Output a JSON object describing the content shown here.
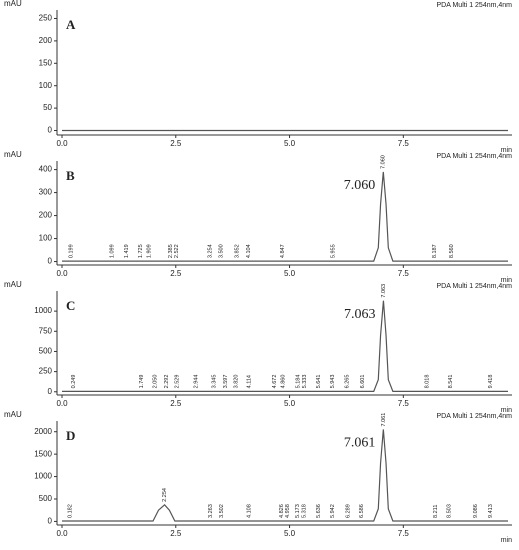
{
  "chart_data": [
    {
      "type": "line",
      "panel": "A",
      "y_label": "mAU",
      "x_label": "min",
      "detector": "PDA Multi 1 254nm,4nm",
      "xlim": [
        0,
        9.8
      ],
      "ylim": [
        -10,
        260
      ],
      "xticks": [
        {
          "value": 0,
          "label": "0.0"
        },
        {
          "value": 2.5,
          "label": "2.5"
        },
        {
          "value": 5,
          "label": "5.0"
        },
        {
          "value": 7.5,
          "label": "7.5"
        }
      ],
      "yticks": [
        0,
        50,
        100,
        150,
        200,
        250
      ],
      "color": "#555555",
      "x": [
        0,
        9.8
      ],
      "values": [
        0,
        0
      ]
    },
    {
      "type": "line",
      "panel": "B",
      "y_label": "mAU",
      "x_label": "min",
      "detector": "PDA Multi 1 254nm,4nm",
      "callout": "7.060",
      "xlim": [
        0,
        9.8
      ],
      "ylim": [
        -15,
        420
      ],
      "xticks": [
        {
          "value": 0,
          "label": "0.0"
        },
        {
          "value": 2.5,
          "label": "2.5"
        },
        {
          "value": 5,
          "label": "5.0"
        },
        {
          "value": 7.5,
          "label": "7.5"
        }
      ],
      "yticks": [
        0,
        100,
        200,
        300,
        400
      ],
      "color": "#555555",
      "x": [
        0,
        6.85,
        6.95,
        7.0,
        7.06,
        7.12,
        7.17,
        7.27,
        9.8
      ],
      "values": [
        2,
        2,
        60,
        250,
        390,
        250,
        60,
        2,
        2
      ],
      "peaks": {
        "x": [
          0.199,
          1.099,
          1.419,
          1.725,
          1.909,
          2.385,
          2.522,
          3.254,
          3.5,
          3.852,
          4.104,
          4.847,
          5.955,
          7.06,
          8.187,
          8.56
        ],
        "labels": [
          "0.199",
          "1.099",
          "1.419",
          "1.725",
          "1.909",
          "2.385",
          "2.522",
          "3.254",
          "3.500",
          "3.852",
          "4.104",
          "4.847",
          "5.955",
          "7.060",
          "8.187",
          "8.560"
        ]
      }
    },
    {
      "type": "line",
      "panel": "C",
      "y_label": "mAU",
      "x_label": "min",
      "detector": "PDA Multi 1 254nm,4nm",
      "callout": "7.063",
      "xlim": [
        0,
        9.8
      ],
      "ylim": [
        -40,
        1200
      ],
      "xticks": [
        {
          "value": 0,
          "label": "0.0"
        },
        {
          "value": 2.5,
          "label": "2.5"
        },
        {
          "value": 5,
          "label": "5.0"
        },
        {
          "value": 7.5,
          "label": "7.5"
        }
      ],
      "yticks": [
        0,
        250,
        500,
        750,
        1000
      ],
      "color": "#555555",
      "x": [
        0,
        6.85,
        6.95,
        7.0,
        7.063,
        7.12,
        7.17,
        7.27,
        9.8
      ],
      "values": [
        5,
        5,
        150,
        700,
        1130,
        700,
        150,
        5,
        5
      ],
      "peaks": {
        "x": [
          0.249,
          1.749,
          2.05,
          2.292,
          2.529,
          2.944,
          3.345,
          3.597,
          3.82,
          4.114,
          4.672,
          4.86,
          5.184,
          5.333,
          5.641,
          5.943,
          6.265,
          6.601,
          7.063,
          8.018,
          8.541,
          9.418
        ],
        "labels": [
          "0.249",
          "1.749",
          "2.050",
          "2.292",
          "2.529",
          "2.944",
          "3.345",
          "3.597",
          "3.820",
          "4.114",
          "4.672",
          "4.860",
          "5.184",
          "5.333",
          "5.641",
          "5.943",
          "6.265",
          "6.601",
          "7.063",
          "8.018",
          "8.541",
          "9.418"
        ]
      }
    },
    {
      "type": "line",
      "panel": "D",
      "y_label": "mAU",
      "x_label": "min",
      "detector": "PDA Multi 1 254nm,4nm",
      "callout": "7.061",
      "xlim": [
        0,
        9.8
      ],
      "ylim": [
        -80,
        2150
      ],
      "xticks": [
        {
          "value": 0,
          "label": "0.0"
        },
        {
          "value": 2.5,
          "label": "2.5"
        },
        {
          "value": 5,
          "label": "5.0"
        },
        {
          "value": 7.5,
          "label": "7.5"
        }
      ],
      "yticks": [
        0,
        500,
        1000,
        1500,
        2000
      ],
      "color": "#555555",
      "x": [
        0,
        2.0,
        2.12,
        2.254,
        2.36,
        2.48,
        6.85,
        6.95,
        7.0,
        7.061,
        7.12,
        7.17,
        7.27,
        9.8
      ],
      "values": [
        10,
        10,
        250,
        370,
        250,
        10,
        10,
        280,
        1300,
        2050,
        1300,
        280,
        10,
        10
      ],
      "peaks": {
        "x": [
          0.182,
          2.254,
          3.263,
          3.502,
          4.108,
          4.826,
          4.958,
          5.173,
          5.318,
          5.636,
          5.942,
          6.289,
          6.586,
          7.061,
          8.211,
          8.503,
          9.086,
          9.413
        ],
        "labels": [
          "0.182",
          "2.254",
          "3.263",
          "3.502",
          "4.108",
          "4.826",
          "4.958",
          "5.173",
          "5.318",
          "5.636",
          "5.942",
          "6.289",
          "6.586",
          "7.061",
          "8.211",
          "8.503",
          "9.086",
          "9.413"
        ]
      }
    }
  ]
}
